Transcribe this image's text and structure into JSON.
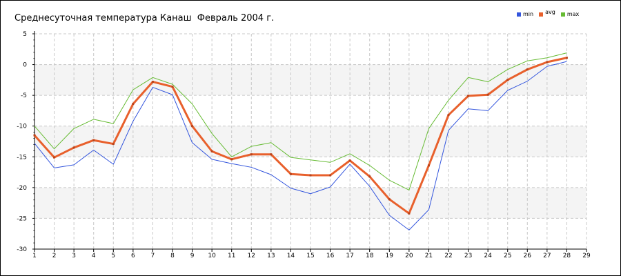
{
  "chart_data": {
    "type": "line",
    "title": "Среднесуточная температура Канаш  Февраль 2004 г.",
    "xlabel": "",
    "ylabel": "",
    "xlim": [
      1,
      29
    ],
    "ylim": [
      -30,
      5
    ],
    "x_ticks": [
      1,
      2,
      3,
      4,
      5,
      6,
      7,
      8,
      9,
      10,
      11,
      12,
      13,
      14,
      15,
      16,
      17,
      18,
      19,
      20,
      21,
      22,
      23,
      24,
      25,
      26,
      27,
      28,
      29
    ],
    "y_ticks": [
      5,
      0,
      -5,
      -10,
      -15,
      -20,
      -25,
      -30
    ],
    "grid": true,
    "legend_position": "top-right",
    "x": [
      1,
      2,
      3,
      4,
      5,
      6,
      7,
      8,
      9,
      10,
      11,
      12,
      13,
      14,
      15,
      16,
      17,
      18,
      19,
      20,
      21,
      22,
      23,
      24,
      25,
      26,
      27,
      28
    ],
    "series": [
      {
        "name": "min",
        "color": "#3355dd",
        "values": [
          -12.8,
          -16.8,
          -16.3,
          -13.9,
          -16.2,
          -9.2,
          -3.7,
          -4.9,
          -12.7,
          -15.4,
          -16.1,
          -16.7,
          -17.9,
          -20.1,
          -21.0,
          -19.9,
          -16.2,
          -19.8,
          -24.5,
          -26.9,
          -23.6,
          -10.7,
          -7.2,
          -7.5,
          -4.2,
          -2.7,
          -0.3,
          0.5
        ]
      },
      {
        "name": "avg",
        "color": "#e8602c",
        "values": [
          -11.5,
          -15.1,
          -13.5,
          -12.3,
          -12.9,
          -6.4,
          -2.8,
          -3.6,
          -10.0,
          -14.1,
          -15.4,
          -14.6,
          -14.6,
          -17.8,
          -18.0,
          -18.0,
          -15.6,
          -18.2,
          -21.9,
          -24.2,
          -16.4,
          -8.2,
          -5.1,
          -4.9,
          -2.5,
          -0.8,
          0.4,
          1.1
        ]
      },
      {
        "name": "max",
        "color": "#66bb33",
        "values": [
          -10.0,
          -13.7,
          -10.4,
          -8.9,
          -9.6,
          -4.1,
          -2.1,
          -3.2,
          -6.4,
          -11.2,
          -15.0,
          -13.3,
          -12.7,
          -15.1,
          -15.5,
          -15.9,
          -14.5,
          -16.4,
          -18.8,
          -20.4,
          -10.4,
          -5.8,
          -2.1,
          -2.8,
          -0.8,
          0.6,
          1.1,
          1.9
        ]
      }
    ]
  }
}
